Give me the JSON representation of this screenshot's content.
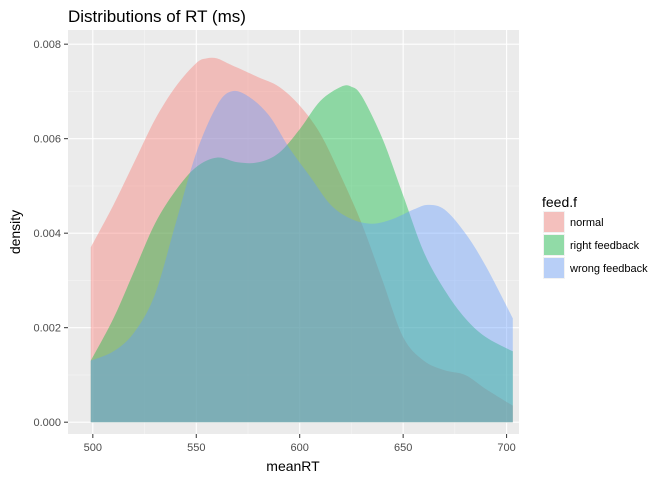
{
  "chart_data": {
    "type": "area",
    "title": "Distributions of RT (ms)",
    "xlabel": "meanRT",
    "ylabel": "density",
    "xlim": [
      488,
      706
    ],
    "ylim": [
      -0.00025,
      0.0083
    ],
    "x_ticks": [
      500,
      550,
      600,
      650,
      700
    ],
    "y_ticks": [
      0.0,
      0.002,
      0.004,
      0.006,
      0.008
    ],
    "y_tick_labels": [
      "0.000",
      "0.002",
      "0.004",
      "0.006",
      "0.008"
    ],
    "grid": true,
    "legend": {
      "title": "feed.f",
      "placement": "right"
    },
    "series": [
      {
        "name": "normal",
        "color": "#F8766D",
        "x": [
          499,
          510,
          520,
          530,
          540,
          550,
          555,
          560,
          565,
          570,
          580,
          590,
          600,
          610,
          620,
          630,
          640,
          650,
          660,
          670,
          680,
          690,
          703
        ],
        "y": [
          0.0037,
          0.0046,
          0.0055,
          0.0064,
          0.0071,
          0.0076,
          0.0077,
          0.0077,
          0.0076,
          0.0075,
          0.0073,
          0.0071,
          0.0067,
          0.0061,
          0.0052,
          0.0042,
          0.003,
          0.0018,
          0.0013,
          0.0011,
          0.001,
          0.0007,
          0.00035
        ]
      },
      {
        "name": "right feedback",
        "color": "#00BA38",
        "x": [
          499,
          510,
          520,
          530,
          540,
          550,
          560,
          570,
          580,
          590,
          600,
          610,
          620,
          625,
          630,
          640,
          650,
          660,
          670,
          680,
          690,
          703
        ],
        "y": [
          0.0013,
          0.0022,
          0.0032,
          0.0042,
          0.0049,
          0.0054,
          0.0056,
          0.0055,
          0.0055,
          0.0057,
          0.0062,
          0.0068,
          0.0071,
          0.0071,
          0.0069,
          0.006,
          0.0048,
          0.0036,
          0.0028,
          0.0022,
          0.0018,
          0.0015
        ]
      },
      {
        "name": "wrong feedback",
        "color": "#619CFF",
        "x": [
          499,
          510,
          520,
          530,
          540,
          550,
          560,
          567,
          575,
          585,
          595,
          605,
          615,
          625,
          635,
          645,
          655,
          662,
          670,
          680,
          690,
          703
        ],
        "y": [
          0.0013,
          0.0015,
          0.0019,
          0.0027,
          0.0042,
          0.0057,
          0.0067,
          0.007,
          0.0069,
          0.0065,
          0.0058,
          0.0052,
          0.0046,
          0.0043,
          0.0042,
          0.0043,
          0.0045,
          0.0046,
          0.0045,
          0.004,
          0.0033,
          0.0022
        ]
      }
    ]
  }
}
